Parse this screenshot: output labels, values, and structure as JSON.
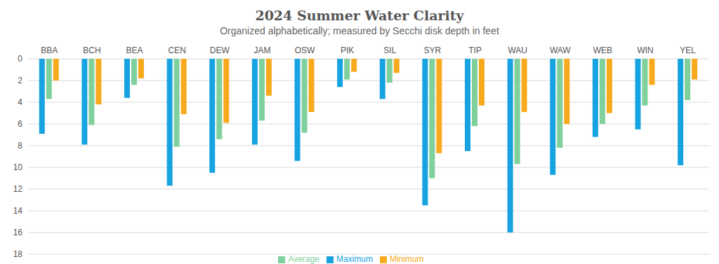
{
  "chart_data": {
    "type": "bar",
    "title": "2024 Summer Water Clarity",
    "subtitle": "Organized alphabetically; measured by Secchi disk depth in feet",
    "categories": [
      "BBA",
      "BCH",
      "BEA",
      "CEN",
      "DEW",
      "JAM",
      "OSW",
      "PIK",
      "SIL",
      "SYR",
      "TIP",
      "WAU",
      "WAW",
      "WEB",
      "WIN",
      "YEL"
    ],
    "series": [
      {
        "name": "Maximum",
        "color": "#17a2e0",
        "values": [
          6.9,
          7.9,
          3.6,
          11.7,
          10.5,
          7.9,
          9.4,
          2.6,
          3.7,
          13.5,
          8.5,
          16.0,
          10.7,
          7.2,
          6.5,
          9.8
        ]
      },
      {
        "name": "Average",
        "color": "#7fd09c",
        "values": [
          3.7,
          6.1,
          2.4,
          8.1,
          7.4,
          5.7,
          6.8,
          1.9,
          2.2,
          11.0,
          6.2,
          9.7,
          8.2,
          6.0,
          4.3,
          3.8
        ]
      },
      {
        "name": "Minimum",
        "color": "#f8aa1e",
        "values": [
          2.0,
          4.2,
          1.8,
          5.1,
          5.9,
          3.4,
          4.9,
          1.2,
          1.3,
          8.7,
          4.3,
          4.9,
          6.0,
          5.0,
          2.4,
          1.9
        ]
      }
    ],
    "ylim": [
      0,
      18
    ],
    "yticks": [
      0,
      2,
      4,
      6,
      8,
      10,
      12,
      14,
      16,
      18
    ],
    "grid": true,
    "legend": "bottom"
  }
}
